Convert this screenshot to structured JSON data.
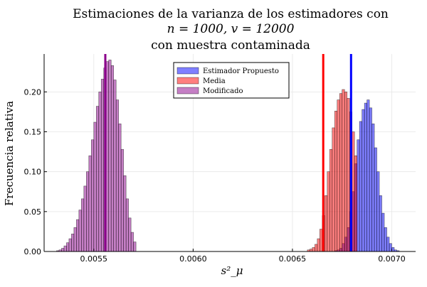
{
  "chart_data": {
    "type": "histogram",
    "title_lines": [
      "Estimaciones de la varianza de los estimadores con",
      "n = 1000, v = 12000",
      "con muestra contaminada"
    ],
    "xlabel": "s²_μ",
    "ylabel": "Frecuencia relativa",
    "xlim": [
      0.00525,
      0.00712
    ],
    "ylim": [
      0,
      0.2475
    ],
    "xticks": [
      0.0055,
      0.006,
      0.0065,
      0.007
    ],
    "xtick_labels": [
      "0.0055",
      "0.0060",
      "0.0065",
      "0.0070"
    ],
    "yticks": [
      0,
      0.05,
      0.1,
      0.15,
      0.2
    ],
    "ytick_labels": [
      "0.00",
      "0.05",
      "0.10",
      "0.15",
      "0.20"
    ],
    "grid": true,
    "legend_position": "top-right",
    "bin_width": 1.25e-05,
    "series": [
      {
        "name": "Estimador Propuesto",
        "color": "#0000ff",
        "opacity": 0.5,
        "bins_start": [
          0.006575,
          0.0065875,
          0.0066,
          0.0066125,
          0.006625,
          0.0066375,
          0.00665,
          0.0066625,
          0.006675,
          0.0066875,
          0.0067,
          0.0067125,
          0.006725,
          0.0067375,
          0.00675,
          0.0067625,
          0.006775,
          0.0067875,
          0.0068,
          0.0068125,
          0.006825,
          0.0068375,
          0.00685,
          0.0068625,
          0.006875,
          0.0068875,
          0.0069,
          0.0069125,
          0.006925,
          0.0069375,
          0.00695,
          0.0069625,
          0.006975,
          0.0069875,
          0.007,
          0.0070125,
          0.007025,
          0.0070375,
          0.00705,
          0.0070625
        ],
        "values": [
          0,
          0,
          0,
          0,
          0,
          0,
          0,
          0,
          0,
          0,
          0,
          0.001,
          0.002,
          0.004,
          0.01,
          0.018,
          0.03,
          0.05,
          0.075,
          0.11,
          0.14,
          0.163,
          0.178,
          0.186,
          0.19,
          0.18,
          0.16,
          0.13,
          0.1,
          0.07,
          0.048,
          0.03,
          0.018,
          0.01,
          0.005,
          0.002,
          0.001,
          0,
          0,
          0
        ]
      },
      {
        "name": "Media",
        "color": "#ff0000",
        "opacity": 0.5,
        "bins_start": [
          0.006575,
          0.0065875,
          0.0066,
          0.0066125,
          0.006625,
          0.0066375,
          0.00665,
          0.0066625,
          0.006675,
          0.0066875,
          0.0067,
          0.0067125,
          0.006725,
          0.0067375,
          0.00675,
          0.0067625,
          0.006775,
          0.0067875,
          0.0068,
          0.0068125
        ],
        "values": [
          0.002,
          0.003,
          0.005,
          0.009,
          0.016,
          0.028,
          0.045,
          0.07,
          0.1,
          0.128,
          0.155,
          0.176,
          0.19,
          0.198,
          0.203,
          0.2,
          0.192,
          0.175,
          0.15,
          0.12
        ]
      },
      {
        "name": "Modificado",
        "color": "#8b008b",
        "opacity": 0.5,
        "bins_start": [
          0.0053125,
          0.005325,
          0.0053375,
          0.00535,
          0.0053625,
          0.005375,
          0.0053875,
          0.0054,
          0.0054125,
          0.005425,
          0.0054375,
          0.00545,
          0.0054625,
          0.005475,
          0.0054875,
          0.0055,
          0.0055125,
          0.005525,
          0.0055375,
          0.00555,
          0.0055625,
          0.005575,
          0.0055875,
          0.0056,
          0.0056125,
          0.005625,
          0.0056375,
          0.00565,
          0.0056625,
          0.005675,
          0.0056875,
          0.0057
        ],
        "values": [
          0.001,
          0.002,
          0.004,
          0.007,
          0.011,
          0.016,
          0.022,
          0.03,
          0.04,
          0.052,
          0.066,
          0.082,
          0.1,
          0.12,
          0.14,
          0.162,
          0.182,
          0.2,
          0.216,
          0.23,
          0.238,
          0.24,
          0.233,
          0.215,
          0.19,
          0.16,
          0.128,
          0.095,
          0.066,
          0.042,
          0.024,
          0.012
        ]
      }
    ],
    "vlines": [
      {
        "series": "Modificado",
        "color": "#8b008b",
        "x": 0.005558
      },
      {
        "series": "Media",
        "color": "#ff0000",
        "x": 0.006655
      },
      {
        "series": "Estimador Propuesto",
        "color": "#0000ff",
        "x": 0.006795
      }
    ]
  }
}
